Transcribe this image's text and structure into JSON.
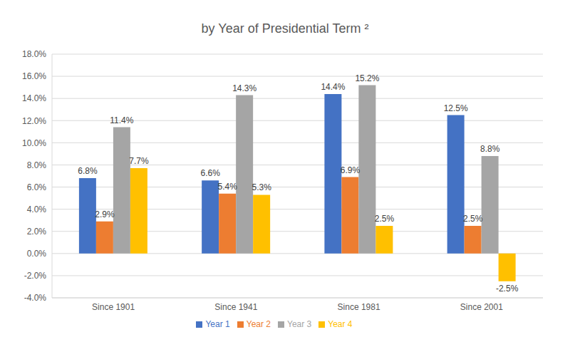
{
  "chart_data": {
    "type": "bar",
    "title": "by Year of Presidential Term ²",
    "categories": [
      "Since 1901",
      "Since 1941",
      "Since 1981",
      "Since 2001"
    ],
    "series": [
      {
        "name": "Year 1",
        "color": "#4472c4",
        "values": [
          6.8,
          6.6,
          14.4,
          12.5
        ],
        "value_labels": [
          "6.8%",
          "6.6%",
          "14.4%",
          "12.5%"
        ]
      },
      {
        "name": "Year 2",
        "color": "#ed7d31",
        "values": [
          2.9,
          5.4,
          6.9,
          2.5
        ],
        "value_labels": [
          "2.9%",
          "5.4%",
          "6.9%",
          "2.5%"
        ]
      },
      {
        "name": "Year 3",
        "color": "#a5a5a5",
        "values": [
          11.4,
          14.3,
          15.2,
          8.8
        ],
        "value_labels": [
          "11.4%",
          "14.3%",
          "15.2%",
          "8.8%"
        ]
      },
      {
        "name": "Year 4",
        "color": "#ffc000",
        "values": [
          7.7,
          5.3,
          2.5,
          -2.5
        ],
        "value_labels": [
          "7.7%",
          "5.3%",
          "2.5%",
          "-2.5%"
        ]
      }
    ],
    "ylim": [
      -4,
      18
    ],
    "yticks": [
      {
        "value": -4,
        "label": "-4.0%"
      },
      {
        "value": -2,
        "label": "-2.0%"
      },
      {
        "value": 0,
        "label": "0.0%"
      },
      {
        "value": 2,
        "label": "2.0%"
      },
      {
        "value": 4,
        "label": "4.0%"
      },
      {
        "value": 6,
        "label": "6.0%"
      },
      {
        "value": 8,
        "label": "8.0%"
      },
      {
        "value": 10,
        "label": "10.0%"
      },
      {
        "value": 12,
        "label": "12.0%"
      },
      {
        "value": 14,
        "label": "14.0%"
      },
      {
        "value": 16,
        "label": "16.0%"
      },
      {
        "value": 18,
        "label": "18.0%"
      }
    ],
    "grid": true,
    "legend": "bottom",
    "data_labels": true
  }
}
